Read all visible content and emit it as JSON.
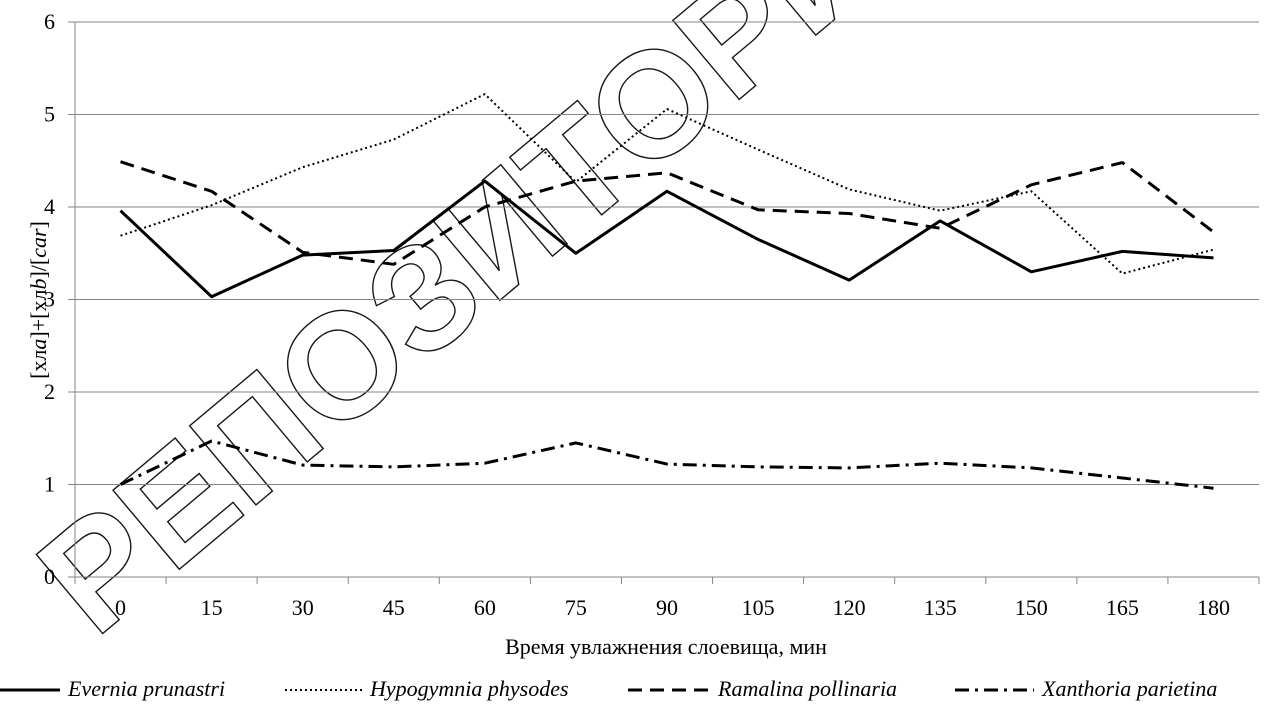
{
  "chart_data": {
    "type": "line",
    "xlabel": "Время увлажнения слоевища, мин",
    "ylabel_parts": [
      "[хл",
      "a",
      "]+[хл",
      "b",
      "]/[",
      "car",
      "]"
    ],
    "categories": [
      "0",
      "15",
      "30",
      "45",
      "60",
      "75",
      "90",
      "105",
      "120",
      "135",
      "150",
      "165",
      "180"
    ],
    "ylim": [
      0,
      6
    ],
    "yticks": [
      "0",
      "1",
      "2",
      "3",
      "4",
      "5",
      "6"
    ],
    "grid": "horizontal",
    "legend_position": "bottom",
    "series": [
      {
        "name": "Evernia prunastri",
        "style": "solid",
        "color": "#000000",
        "values": [
          3.96,
          3.03,
          3.48,
          3.53,
          4.28,
          3.5,
          4.17,
          3.65,
          3.21,
          3.85,
          3.3,
          3.52,
          3.45
        ]
      },
      {
        "name": "Hypogymnia physodes",
        "style": "dotted",
        "color": "#000000",
        "values": [
          3.69,
          4.02,
          4.43,
          4.73,
          5.22,
          4.27,
          5.06,
          4.62,
          4.19,
          3.96,
          4.17,
          3.28,
          3.54
        ]
      },
      {
        "name": "Ramalina pollinaria",
        "style": "dashed",
        "color": "#000000",
        "values": [
          4.49,
          4.17,
          3.51,
          3.38,
          4.0,
          4.28,
          4.37,
          3.97,
          3.93,
          3.77,
          4.24,
          4.48,
          3.73
        ]
      },
      {
        "name": "Xanthoria parietina",
        "style": "dashdot",
        "color": "#000000",
        "values": [
          1.0,
          1.47,
          1.21,
          1.19,
          1.23,
          1.45,
          1.22,
          1.19,
          1.18,
          1.23,
          1.18,
          1.07,
          0.96
        ]
      }
    ]
  },
  "watermark": {
    "text": "РЕПОЗИТОРИЙ ГГУ"
  }
}
